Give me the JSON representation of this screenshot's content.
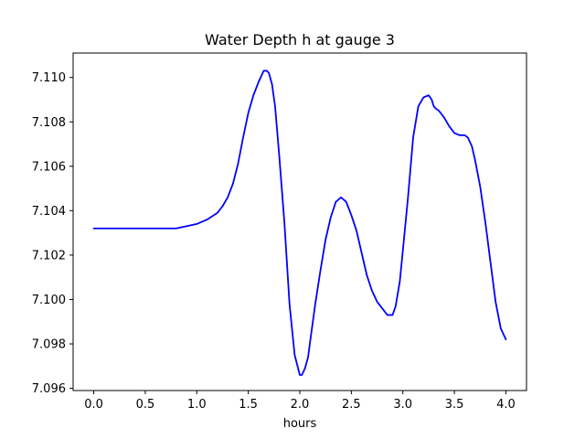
{
  "chart_data": {
    "type": "line",
    "title": "Water Depth h at gauge 3",
    "xlabel": "hours",
    "ylabel": "",
    "xlim": [
      -0.2,
      4.2
    ],
    "ylim": [
      7.0959,
      7.1111
    ],
    "grid": false,
    "x_ticks": [
      0.0,
      0.5,
      1.0,
      1.5,
      2.0,
      2.5,
      3.0,
      3.5,
      4.0
    ],
    "x_tick_labels": [
      "0.0",
      "0.5",
      "1.0",
      "1.5",
      "2.0",
      "2.5",
      "3.0",
      "3.5",
      "4.0"
    ],
    "y_ticks": [
      7.096,
      7.098,
      7.1,
      7.102,
      7.104,
      7.106,
      7.108,
      7.11
    ],
    "y_tick_labels": [
      "7.096",
      "7.098",
      "7.100",
      "7.102",
      "7.104",
      "7.106",
      "7.108",
      "7.110"
    ],
    "series": [
      {
        "color": "#0000ff",
        "x": [
          0.0,
          0.2,
          0.4,
          0.6,
          0.8,
          0.9,
          1.0,
          1.1,
          1.2,
          1.25,
          1.3,
          1.35,
          1.4,
          1.45,
          1.5,
          1.55,
          1.6,
          1.65,
          1.68,
          1.7,
          1.73,
          1.76,
          1.8,
          1.85,
          1.9,
          1.95,
          2.0,
          2.02,
          2.05,
          2.08,
          2.1,
          2.15,
          2.2,
          2.25,
          2.3,
          2.35,
          2.4,
          2.45,
          2.5,
          2.55,
          2.6,
          2.65,
          2.7,
          2.75,
          2.8,
          2.85,
          2.9,
          2.93,
          2.97,
          3.0,
          3.05,
          3.1,
          3.15,
          3.2,
          3.25,
          3.28,
          3.3,
          3.32,
          3.35,
          3.4,
          3.45,
          3.5,
          3.55,
          3.6,
          3.63,
          3.67,
          3.7,
          3.75,
          3.8,
          3.85,
          3.9,
          3.95,
          4.0
        ],
        "y": [
          7.1032,
          7.1032,
          7.1032,
          7.1032,
          7.1032,
          7.1033,
          7.1034,
          7.1036,
          7.1039,
          7.1042,
          7.1046,
          7.1052,
          7.1061,
          7.1073,
          7.1084,
          7.1092,
          7.1098,
          7.1103,
          7.1103,
          7.1102,
          7.1097,
          7.1087,
          7.1065,
          7.1035,
          7.0998,
          7.0975,
          7.0966,
          7.0966,
          7.0969,
          7.0974,
          7.0981,
          7.0998,
          7.1013,
          7.1027,
          7.1037,
          7.1044,
          7.1046,
          7.1044,
          7.1038,
          7.1031,
          7.1021,
          7.1011,
          7.1004,
          7.0999,
          7.0996,
          7.0993,
          7.0993,
          7.0997,
          7.1008,
          7.1022,
          7.1046,
          7.1073,
          7.1087,
          7.1091,
          7.1092,
          7.109,
          7.1087,
          7.1086,
          7.1085,
          7.1082,
          7.1078,
          7.1075,
          7.1074,
          7.1074,
          7.1073,
          7.1069,
          7.1063,
          7.1051,
          7.1035,
          7.1017,
          7.0999,
          7.0987,
          7.0982
        ]
      }
    ]
  }
}
